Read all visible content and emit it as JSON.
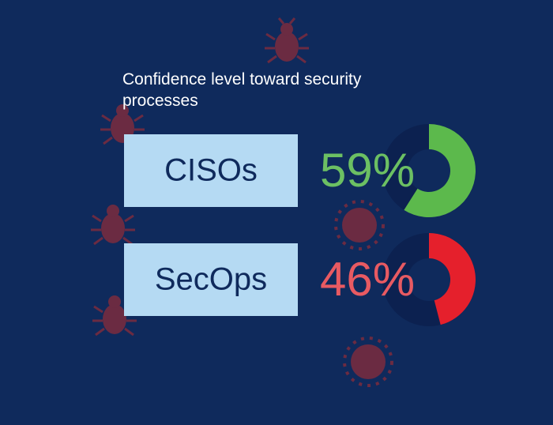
{
  "chart_data": {
    "type": "donut",
    "title": "Confidence level toward security processes",
    "categories": [
      "CISOs",
      "SecOps"
    ],
    "values": [
      59,
      46
    ],
    "value_labels": [
      "59%",
      "46%"
    ],
    "colors": [
      "#5cb94c",
      "#e5202c"
    ],
    "label_colors": [
      "#6cc063",
      "#e85a62"
    ]
  }
}
